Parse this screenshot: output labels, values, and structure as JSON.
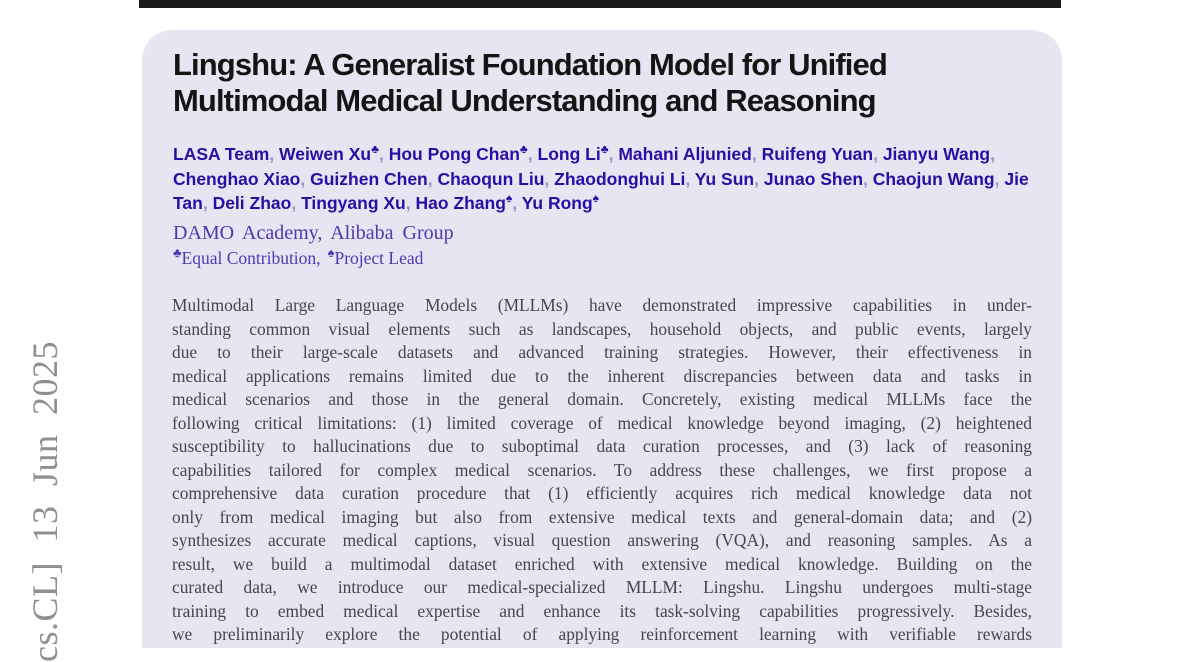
{
  "stamp": {
    "text": "cs.CL] 13 Jun 2025",
    "color": "#8f8f8f"
  },
  "paper": {
    "title": {
      "line1": "Lingshu: A Generalist Foundation Model for Unified",
      "line2": "Multimodal Medical Understanding and Reasoning"
    },
    "authors": [
      {
        "name": "LASA Team",
        "sup": ""
      },
      {
        "name": "Weiwen Xu",
        "sup": "♣"
      },
      {
        "name": "Hou Pong Chan",
        "sup": "♣"
      },
      {
        "name": "Long Li",
        "sup": "♣"
      },
      {
        "name": "Mahani Aljunied",
        "sup": ""
      },
      {
        "name": "Ruifeng Yuan",
        "sup": ""
      },
      {
        "name": "Jianyu Wang",
        "sup": ""
      },
      {
        "name": "Chenghao Xiao",
        "sup": ""
      },
      {
        "name": "Guizhen Chen",
        "sup": ""
      },
      {
        "name": "Chaoqun Liu",
        "sup": ""
      },
      {
        "name": "Zhaodonghui Li",
        "sup": ""
      },
      {
        "name": "Yu Sun",
        "sup": ""
      },
      {
        "name": "Junao Shen",
        "sup": ""
      },
      {
        "name": "Chaojun Wang",
        "sup": ""
      },
      {
        "name": "Jie Tan",
        "sup": ""
      },
      {
        "name": "Deli Zhao",
        "sup": ""
      },
      {
        "name": "Tingyang Xu",
        "sup": ""
      },
      {
        "name": "Hao Zhang",
        "sup": "♠"
      },
      {
        "name": "Yu Rong",
        "sup": "♠"
      }
    ],
    "affiliation": "DAMO Academy, Alibaba Group",
    "notes": {
      "equal_sym": "♣",
      "equal_text": "Equal Contribution,",
      "lead_sym": "♠",
      "lead_text": "Project Lead"
    },
    "abstract_lines": [
      "Multimodal Large Language Models (MLLMs) have demonstrated impressive capabilities in under-",
      "standing common visual elements such as landscapes, household objects, and public events, largely",
      "due to their large-scale datasets and advanced training strategies. However, their effectiveness in",
      "medical applications remains limited due to the inherent discrepancies between data and tasks in",
      "medical scenarios and those in the general domain. Concretely, existing medical MLLMs face the",
      "following critical limitations: (1) limited coverage of medical knowledge beyond imaging, (2) heightened",
      "susceptibility to hallucinations due to suboptimal data curation processes, and (3) lack of reasoning",
      "capabilities tailored for complex medical scenarios. To address these challenges, we first propose a",
      "comprehensive data curation procedure that (1) efficiently acquires rich medical knowledge data not",
      "only from medical imaging but also from extensive medical texts and general-domain data; and (2)",
      "synthesizes accurate medical captions, visual question answering (VQA), and reasoning samples. As a",
      "result, we build a multimodal dataset enriched with extensive medical knowledge. Building on the",
      "curated data, we introduce our medical-specialized MLLM: Lingshu. Lingshu undergoes multi-stage",
      "training to embed medical expertise and enhance its task-solving capabilities progressively. Besides,",
      "we preliminarily explore the potential of applying reinforcement learning with verifiable rewards"
    ]
  },
  "colors": {
    "card_bg": "#e8e5f3",
    "top_bar": "#1a1a1a",
    "title": "#141414",
    "author": "#2a0da4",
    "author_separator": "#9a93c5",
    "affiliation": "#4a3ab2",
    "abstract_text": "#45454d",
    "stamp_text": "#8f8f8f"
  }
}
